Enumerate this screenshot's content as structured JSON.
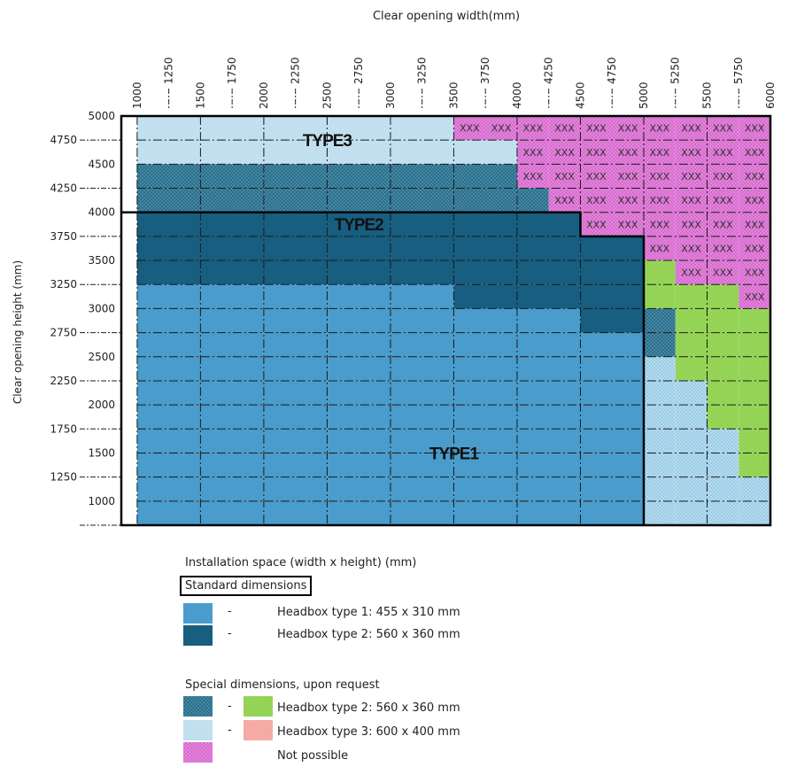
{
  "chart_data": {
    "type": "heatmap",
    "xlabel": "Clear opening width(mm)",
    "ylabel": "Clear opening height (mm)",
    "xlim": [
      875,
      6000
    ],
    "ylim": [
      750,
      5000
    ],
    "x_ticks_major": [
      "1000",
      "1500",
      "2000",
      "2500",
      "3000",
      "3500",
      "4000",
      "4500",
      "5000",
      "5500",
      "6000"
    ],
    "x_ticks_minor": [
      "1250",
      "1750",
      "2250",
      "2750",
      "3250",
      "3750",
      "4250",
      "4750",
      "5250",
      "5750"
    ],
    "y_ticks_major": [
      "5000",
      "4500",
      "4000",
      "3500",
      "3000",
      "2500",
      "2000",
      "1500",
      "1000"
    ],
    "y_ticks_minor": [
      "4750",
      "4250",
      "3750",
      "3250",
      "2750",
      "2250",
      "1750",
      "1250"
    ],
    "type_labels": [
      {
        "text": "TYPE3",
        "x": 2500,
        "y": 4750
      },
      {
        "text": "TYPE2",
        "x": 2750,
        "y": 3880
      },
      {
        "text": "TYPE1",
        "x": 3500,
        "y": 1500
      }
    ],
    "crossed_label": "XXX",
    "regions": [
      {
        "category": "type3_special",
        "x": [
          1000,
          3500
        ],
        "y": [
          4500,
          5000
        ]
      },
      {
        "category": "type3_special",
        "x": [
          3500,
          4000
        ],
        "y": [
          4500,
          4750
        ]
      },
      {
        "category": "type2_special",
        "x": [
          1000,
          4000
        ],
        "y": [
          4000,
          4500
        ]
      },
      {
        "category": "type2_special",
        "x": [
          4000,
          4250
        ],
        "y": [
          4000,
          4250
        ]
      },
      {
        "category": "type2_standard",
        "x": [
          1000,
          4500
        ],
        "y": [
          3250,
          4000
        ]
      },
      {
        "category": "type2_standard",
        "x": [
          3500,
          4500
        ],
        "y": [
          3000,
          3250
        ]
      },
      {
        "category": "type2_standard",
        "x": [
          4500,
          5000
        ],
        "y": [
          2750,
          3750
        ]
      },
      {
        "category": "type1_standard",
        "x": [
          1000,
          3500
        ],
        "y": [
          750,
          3250
        ]
      },
      {
        "category": "type1_standard",
        "x": [
          3500,
          4500
        ],
        "y": [
          750,
          3000
        ]
      },
      {
        "category": "type1_standard",
        "x": [
          4500,
          5000
        ],
        "y": [
          750,
          2750
        ]
      },
      {
        "category": "type2_special",
        "x": [
          5000,
          5250
        ],
        "y": [
          2500,
          3000
        ]
      },
      {
        "category": "type2_special_green",
        "x": [
          5000,
          5250
        ],
        "y": [
          3000,
          3500
        ]
      },
      {
        "category": "type2_special_green",
        "x": [
          5250,
          5750
        ],
        "y": [
          2250,
          3250
        ]
      },
      {
        "category": "type2_special_green",
        "x": [
          5500,
          5750
        ],
        "y": [
          1750,
          2250
        ]
      },
      {
        "category": "type2_special_green",
        "x": [
          5750,
          6000
        ],
        "y": [
          1250,
          3000
        ]
      },
      {
        "category": "type1_special",
        "x": [
          5000,
          5250
        ],
        "y": [
          750,
          2500
        ]
      },
      {
        "category": "type1_special",
        "x": [
          5250,
          5500
        ],
        "y": [
          750,
          2250
        ]
      },
      {
        "category": "type1_special",
        "x": [
          5500,
          5750
        ],
        "y": [
          750,
          1750
        ]
      },
      {
        "category": "type1_special",
        "x": [
          5750,
          6000
        ],
        "y": [
          750,
          1250
        ]
      },
      {
        "category": "not_possible",
        "x": [
          3500,
          4000
        ],
        "y": [
          4750,
          5000
        ]
      },
      {
        "category": "not_possible",
        "x": [
          4000,
          4250
        ],
        "y": [
          4250,
          5000
        ]
      },
      {
        "category": "not_possible",
        "x": [
          4250,
          4500
        ],
        "y": [
          4000,
          5000
        ]
      },
      {
        "category": "not_possible",
        "x": [
          4500,
          5000
        ],
        "y": [
          3750,
          5000
        ]
      },
      {
        "category": "not_possible",
        "x": [
          5000,
          5250
        ],
        "y": [
          3500,
          5000
        ]
      },
      {
        "category": "not_possible",
        "x": [
          5250,
          5750
        ],
        "y": [
          3250,
          5000
        ]
      },
      {
        "category": "not_possible",
        "x": [
          5750,
          6000
        ],
        "y": [
          3000,
          5000
        ]
      }
    ],
    "boundaries": [
      {
        "name": "outer",
        "points": [
          [
            875,
            750
          ],
          [
            875,
            5000
          ],
          [
            6000,
            5000
          ],
          [
            6000,
            750
          ]
        ]
      },
      {
        "name": "type2-top",
        "points": [
          [
            875,
            4000
          ],
          [
            4500,
            4000
          ],
          [
            4500,
            3750
          ],
          [
            5000,
            3750
          ],
          [
            5000,
            750
          ]
        ]
      }
    ],
    "colors": {
      "type1_standard": "#4a9ccc",
      "type2_standard": "#175e80",
      "type2_special": "#2a6f8c",
      "type1_special": "#b7dcef",
      "type3_special": "#c6e2f1",
      "type2_special_green": "#8fd14f",
      "type3_special_salmon": "#f4a6a0",
      "not_possible": "#d86ad0"
    }
  },
  "legend": {
    "title": "Installation space (width x height) (mm)",
    "standard_heading": "Standard dimensions",
    "special_heading": "Special dimensions, upon request",
    "dash": "-",
    "items": {
      "type1": "Headbox type 1: 455 x 310 mm",
      "type2": "Headbox type 2: 560  x 360 mm",
      "special_type2": "Headbox type 2: 560  x 360 mm",
      "special_type3": "Headbox type 3: 600 x 400 mm",
      "not_possible": "Not possible"
    }
  }
}
